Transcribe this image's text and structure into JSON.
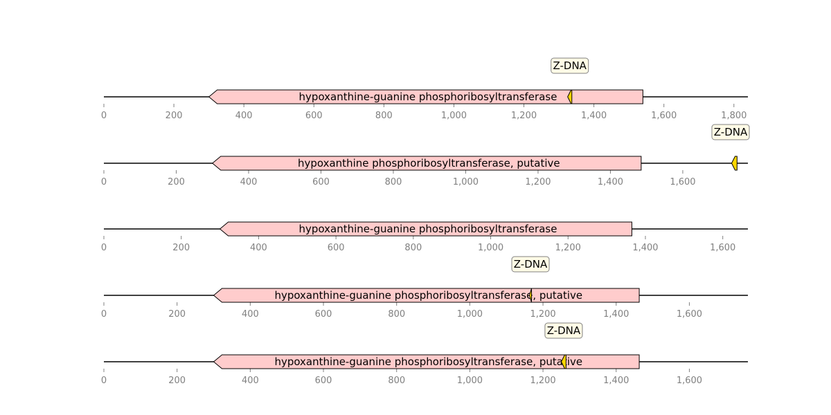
{
  "colors": {
    "backbone": "#000000",
    "gene_fill": "#ffcccc",
    "gene_stroke": "#000000",
    "zdna_fill": "#ffd700",
    "callout_fill": "#fffbe6",
    "callout_stroke": "#808080",
    "tick": "#808080"
  },
  "tracks": [
    {
      "sequence_length": 1840,
      "ticks": [
        {
          "value": 0,
          "label": "0"
        },
        {
          "value": 200,
          "label": "200"
        },
        {
          "value": 400,
          "label": "400"
        },
        {
          "value": 600,
          "label": "600"
        },
        {
          "value": 800,
          "label": "800"
        },
        {
          "value": 1000,
          "label": "1,000"
        },
        {
          "value": 1200,
          "label": "1,200"
        },
        {
          "value": 1400,
          "label": "1,400"
        },
        {
          "value": 1600,
          "label": "1,600"
        },
        {
          "value": 1800,
          "label": "1,800"
        }
      ],
      "gene": {
        "label": "hypoxanthine-guanine phosphoribosyltransferase",
        "start": 300,
        "end": 1540,
        "strand": "-"
      },
      "zdna": {
        "label": "Z-DNA",
        "start": 1325,
        "end": 1337
      }
    },
    {
      "sequence_length": 1780,
      "ticks": [
        {
          "value": 0,
          "label": "0"
        },
        {
          "value": 200,
          "label": "200"
        },
        {
          "value": 400,
          "label": "400"
        },
        {
          "value": 600,
          "label": "600"
        },
        {
          "value": 800,
          "label": "800"
        },
        {
          "value": 1000,
          "label": "1,000"
        },
        {
          "value": 1200,
          "label": "1,200"
        },
        {
          "value": 1400,
          "label": "1,400"
        },
        {
          "value": 1600,
          "label": "1,600"
        }
      ],
      "gene": {
        "label": "hypoxanthine phosphoribosyltransferase, putative",
        "start": 300,
        "end": 1485,
        "strand": "-"
      },
      "zdna": {
        "label": "Z-DNA",
        "start": 1735,
        "end": 1750
      }
    },
    {
      "sequence_length": 1665,
      "ticks": [
        {
          "value": 0,
          "label": "0"
        },
        {
          "value": 200,
          "label": "200"
        },
        {
          "value": 400,
          "label": "400"
        },
        {
          "value": 600,
          "label": "600"
        },
        {
          "value": 800,
          "label": "800"
        },
        {
          "value": 1000,
          "label": "1,000"
        },
        {
          "value": 1200,
          "label": "1,200"
        },
        {
          "value": 1400,
          "label": "1,400"
        },
        {
          "value": 1600,
          "label": "1,600"
        }
      ],
      "gene": {
        "label": "hypoxanthine-guanine phosphoribosyltransferase",
        "start": 300,
        "end": 1365,
        "strand": "-"
      },
      "zdna": null
    },
    {
      "sequence_length": 1760,
      "ticks": [
        {
          "value": 0,
          "label": "0"
        },
        {
          "value": 200,
          "label": "200"
        },
        {
          "value": 400,
          "label": "400"
        },
        {
          "value": 600,
          "label": "600"
        },
        {
          "value": 800,
          "label": "800"
        },
        {
          "value": 1000,
          "label": "1,000"
        },
        {
          "value": 1200,
          "label": "1,200"
        },
        {
          "value": 1400,
          "label": "1,400"
        },
        {
          "value": 1600,
          "label": "1,600"
        }
      ],
      "gene": {
        "label": "hypoxanthine-guanine phosphoribosyltransferase, putative",
        "start": 300,
        "end": 1463,
        "strand": "-"
      },
      "zdna": {
        "label": "Z-DNA",
        "start": 1163,
        "end": 1168
      }
    },
    {
      "sequence_length": 1760,
      "ticks": [
        {
          "value": 0,
          "label": "0"
        },
        {
          "value": 200,
          "label": "200"
        },
        {
          "value": 400,
          "label": "400"
        },
        {
          "value": 600,
          "label": "600"
        },
        {
          "value": 800,
          "label": "800"
        },
        {
          "value": 1000,
          "label": "1,000"
        },
        {
          "value": 1200,
          "label": "1,200"
        },
        {
          "value": 1400,
          "label": "1,400"
        },
        {
          "value": 1600,
          "label": "1,600"
        }
      ],
      "gene": {
        "label": "hypoxanthine-guanine phosphoribosyltransferase, putative",
        "start": 300,
        "end": 1463,
        "strand": "-"
      },
      "zdna": {
        "label": "Z-DNA",
        "start": 1250,
        "end": 1263
      }
    }
  ]
}
